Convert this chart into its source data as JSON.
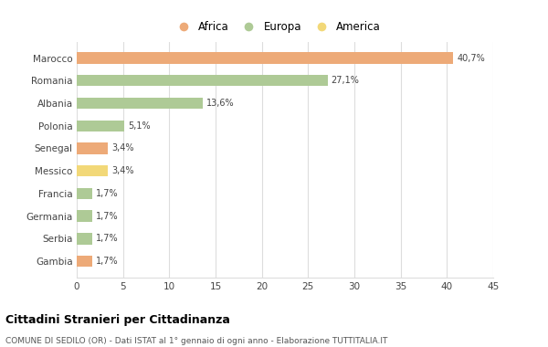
{
  "categories": [
    "Marocco",
    "Romania",
    "Albania",
    "Polonia",
    "Senegal",
    "Messico",
    "Francia",
    "Germania",
    "Serbia",
    "Gambia"
  ],
  "values": [
    40.7,
    27.1,
    13.6,
    5.1,
    3.4,
    3.4,
    1.7,
    1.7,
    1.7,
    1.7
  ],
  "labels": [
    "40,7%",
    "27,1%",
    "13,6%",
    "5,1%",
    "3,4%",
    "3,4%",
    "1,7%",
    "1,7%",
    "1,7%",
    "1,7%"
  ],
  "continents": [
    "Africa",
    "Europa",
    "Europa",
    "Europa",
    "Africa",
    "America",
    "Europa",
    "Europa",
    "Europa",
    "Africa"
  ],
  "colors": {
    "Africa": "#EDAA78",
    "Europa": "#AECA96",
    "America": "#F2D878"
  },
  "legend_items": [
    "Africa",
    "Europa",
    "America"
  ],
  "legend_colors": [
    "#EDAA78",
    "#AECA96",
    "#F2D878"
  ],
  "xlim": [
    0,
    45
  ],
  "xticks": [
    0,
    5,
    10,
    15,
    20,
    25,
    30,
    35,
    40,
    45
  ],
  "title": "Cittadini Stranieri per Cittadinanza",
  "subtitle": "COMUNE DI SEDILO (OR) - Dati ISTAT al 1° gennaio di ogni anno - Elaborazione TUTTITALIA.IT",
  "background_color": "#ffffff",
  "grid_color": "#dddddd",
  "bar_height": 0.5
}
